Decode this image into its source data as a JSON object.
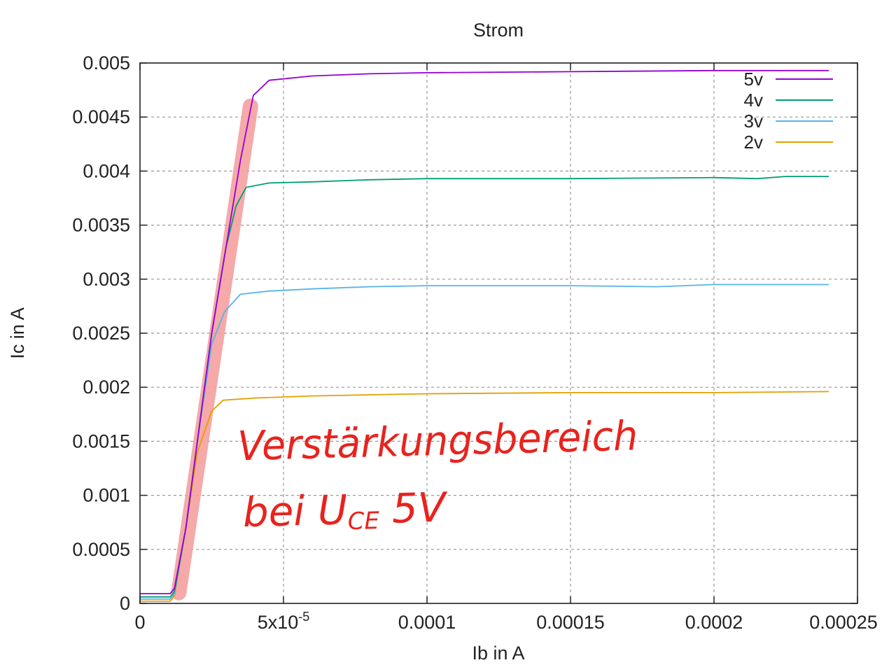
{
  "chart_data": {
    "type": "line",
    "title": "Strom",
    "xlabel": "Ib in A",
    "ylabel": "Ic in A",
    "xlim": [
      0,
      0.00025
    ],
    "ylim": [
      0,
      0.005
    ],
    "x_ticks": [
      {
        "value": 0,
        "label": "0"
      },
      {
        "value": 5e-05,
        "label": "5x10",
        "sup": "-5"
      },
      {
        "value": 0.0001,
        "label": "0.0001"
      },
      {
        "value": 0.00015,
        "label": "0.00015"
      },
      {
        "value": 0.0002,
        "label": "0.0002"
      },
      {
        "value": 0.00025,
        "label": "0.00025"
      }
    ],
    "y_ticks": [
      {
        "value": 0,
        "label": "0"
      },
      {
        "value": 0.0005,
        "label": "0.0005"
      },
      {
        "value": 0.001,
        "label": "0.001"
      },
      {
        "value": 0.0015,
        "label": "0.0015"
      },
      {
        "value": 0.002,
        "label": "0.002"
      },
      {
        "value": 0.0025,
        "label": "0.0025"
      },
      {
        "value": 0.003,
        "label": "0.003"
      },
      {
        "value": 0.0035,
        "label": "0.0035"
      },
      {
        "value": 0.004,
        "label": "0.004"
      },
      {
        "value": 0.0045,
        "label": "0.0045"
      },
      {
        "value": 0.005,
        "label": "0.005"
      }
    ],
    "grid": true,
    "legend_position": "top-right",
    "series": [
      {
        "name": "5v",
        "color": "#9400d3",
        "points": [
          [
            0,
            9e-05
          ],
          [
            1.05e-05,
            9e-05
          ],
          [
            1.2e-05,
            0.00014
          ],
          [
            1.6e-05,
            0.0007
          ],
          [
            2e-05,
            0.0015
          ],
          [
            2.5e-05,
            0.0025
          ],
          [
            3e-05,
            0.0033
          ],
          [
            3.5e-05,
            0.0041
          ],
          [
            3.95e-05,
            0.0047
          ],
          [
            4.5e-05,
            0.00484
          ],
          [
            6e-05,
            0.00488
          ],
          [
            8e-05,
            0.0049
          ],
          [
            0.0001,
            0.00491
          ],
          [
            0.00015,
            0.00492
          ],
          [
            0.0002,
            0.00493
          ],
          [
            0.00024,
            0.00493
          ]
        ]
      },
      {
        "name": "4v",
        "color": "#009e73",
        "points": [
          [
            0,
            6e-05
          ],
          [
            1.05e-05,
            6e-05
          ],
          [
            1.2e-05,
            0.00011
          ],
          [
            1.6e-05,
            0.0007
          ],
          [
            2e-05,
            0.0015
          ],
          [
            2.5e-05,
            0.0025
          ],
          [
            3e-05,
            0.0033
          ],
          [
            3.35e-05,
            0.00368
          ],
          [
            3.7e-05,
            0.00385
          ],
          [
            4.5e-05,
            0.00389
          ],
          [
            6e-05,
            0.0039
          ],
          [
            8e-05,
            0.00392
          ],
          [
            0.0001,
            0.00393
          ],
          [
            0.00015,
            0.00393
          ],
          [
            0.0002,
            0.00394
          ],
          [
            0.000215,
            0.00393
          ],
          [
            0.000225,
            0.00395
          ],
          [
            0.00024,
            0.00395
          ]
        ]
      },
      {
        "name": "3v",
        "color": "#56b4e9",
        "points": [
          [
            0,
            4e-05
          ],
          [
            1.05e-05,
            4e-05
          ],
          [
            1.2e-05,
            9e-05
          ],
          [
            1.6e-05,
            0.0007
          ],
          [
            2e-05,
            0.0015
          ],
          [
            2.5e-05,
            0.0024
          ],
          [
            2.95e-05,
            0.0027
          ],
          [
            3.5e-05,
            0.00286
          ],
          [
            4.5e-05,
            0.00289
          ],
          [
            6e-05,
            0.00291
          ],
          [
            8e-05,
            0.00293
          ],
          [
            0.0001,
            0.00294
          ],
          [
            0.00015,
            0.00294
          ],
          [
            0.00018,
            0.00293
          ],
          [
            0.0002,
            0.00295
          ],
          [
            0.00024,
            0.00295
          ]
        ]
      },
      {
        "name": "2v",
        "color": "#e69f00",
        "points": [
          [
            0,
            2e-05
          ],
          [
            1.05e-05,
            2e-05
          ],
          [
            1.2e-05,
            7e-05
          ],
          [
            1.6e-05,
            0.0007
          ],
          [
            2e-05,
            0.0014
          ],
          [
            2.5e-05,
            0.00178
          ],
          [
            2.9e-05,
            0.00188
          ],
          [
            4e-05,
            0.0019
          ],
          [
            6e-05,
            0.00192
          ],
          [
            8e-05,
            0.00193
          ],
          [
            0.0001,
            0.00194
          ],
          [
            0.00015,
            0.00195
          ],
          [
            0.0002,
            0.00195
          ],
          [
            0.00024,
            0.00196
          ]
        ]
      }
    ],
    "highlight": {
      "color": "#f5a0a0",
      "from": [
        1.35e-05,
        0.0001
      ],
      "to": [
        3.85e-05,
        0.0046
      ]
    }
  },
  "annotation": {
    "line1": "Verstärkungsbereich",
    "line2": "bei U",
    "line2_sub": "CE",
    "line2_end": " 5V",
    "color": "#e8231e"
  }
}
